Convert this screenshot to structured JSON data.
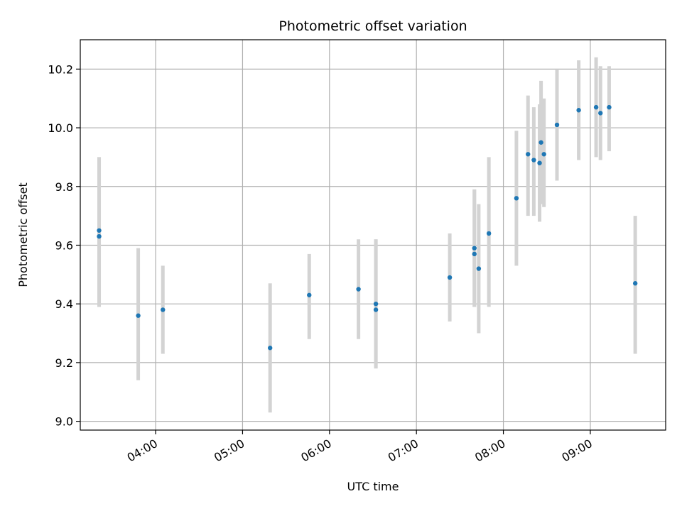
{
  "chart_data": {
    "type": "scatter",
    "title": "Photometric offset variation",
    "xlabel": "UTC time",
    "ylabel": "Photometric offset",
    "x_axis_kind": "time",
    "xlim": [
      "03:08",
      "09:52"
    ],
    "ylim": [
      8.97,
      10.3
    ],
    "x_ticks": [
      "04:00",
      "05:00",
      "06:00",
      "07:00",
      "08:00",
      "09:00"
    ],
    "y_ticks": [
      "9.0",
      "9.2",
      "9.4",
      "9.6",
      "9.8",
      "10.0",
      "10.2"
    ],
    "grid": true,
    "point_color": "#1f77b4",
    "errorbar_color": "#d3d3d3",
    "points": [
      {
        "x": "03:21",
        "y": 9.65,
        "err_low": 9.39,
        "err_high": 9.9
      },
      {
        "x": "03:21",
        "y": 9.63,
        "err_low": 9.39,
        "err_high": 9.9
      },
      {
        "x": "03:48",
        "y": 9.36,
        "err_low": 9.14,
        "err_high": 9.59
      },
      {
        "x": "04:05",
        "y": 9.38,
        "err_low": 9.23,
        "err_high": 9.53
      },
      {
        "x": "05:19",
        "y": 9.25,
        "err_low": 9.03,
        "err_high": 9.47
      },
      {
        "x": "05:46",
        "y": 9.43,
        "err_low": 9.28,
        "err_high": 9.57
      },
      {
        "x": "06:20",
        "y": 9.45,
        "err_low": 9.28,
        "err_high": 9.62
      },
      {
        "x": "06:32",
        "y": 9.4,
        "err_low": 9.18,
        "err_high": 9.62
      },
      {
        "x": "06:32",
        "y": 9.38,
        "err_low": 9.18,
        "err_high": 9.62
      },
      {
        "x": "07:23",
        "y": 9.49,
        "err_low": 9.34,
        "err_high": 9.64
      },
      {
        "x": "07:40",
        "y": 9.59,
        "err_low": 9.39,
        "err_high": 9.79
      },
      {
        "x": "07:40",
        "y": 9.57,
        "err_low": 9.39,
        "err_high": 9.79
      },
      {
        "x": "07:43",
        "y": 9.52,
        "err_low": 9.3,
        "err_high": 9.74
      },
      {
        "x": "07:50",
        "y": 9.64,
        "err_low": 9.39,
        "err_high": 9.9
      },
      {
        "x": "08:09",
        "y": 9.76,
        "err_low": 9.53,
        "err_high": 9.99
      },
      {
        "x": "08:17",
        "y": 9.91,
        "err_low": 9.7,
        "err_high": 10.11
      },
      {
        "x": "08:21",
        "y": 9.89,
        "err_low": 9.7,
        "err_high": 10.07
      },
      {
        "x": "08:25",
        "y": 9.88,
        "err_low": 9.68,
        "err_high": 10.08
      },
      {
        "x": "08:26",
        "y": 9.95,
        "err_low": 9.74,
        "err_high": 10.16
      },
      {
        "x": "08:28",
        "y": 9.91,
        "err_low": 9.73,
        "err_high": 10.1
      },
      {
        "x": "08:37",
        "y": 10.01,
        "err_low": 9.82,
        "err_high": 10.2
      },
      {
        "x": "08:52",
        "y": 10.06,
        "err_low": 9.89,
        "err_high": 10.23
      },
      {
        "x": "09:04",
        "y": 10.07,
        "err_low": 9.9,
        "err_high": 10.24
      },
      {
        "x": "09:07",
        "y": 10.05,
        "err_low": 9.89,
        "err_high": 10.21
      },
      {
        "x": "09:13",
        "y": 10.07,
        "err_low": 9.92,
        "err_high": 10.21
      },
      {
        "x": "09:31",
        "y": 9.47,
        "err_low": 9.23,
        "err_high": 9.7
      }
    ]
  }
}
